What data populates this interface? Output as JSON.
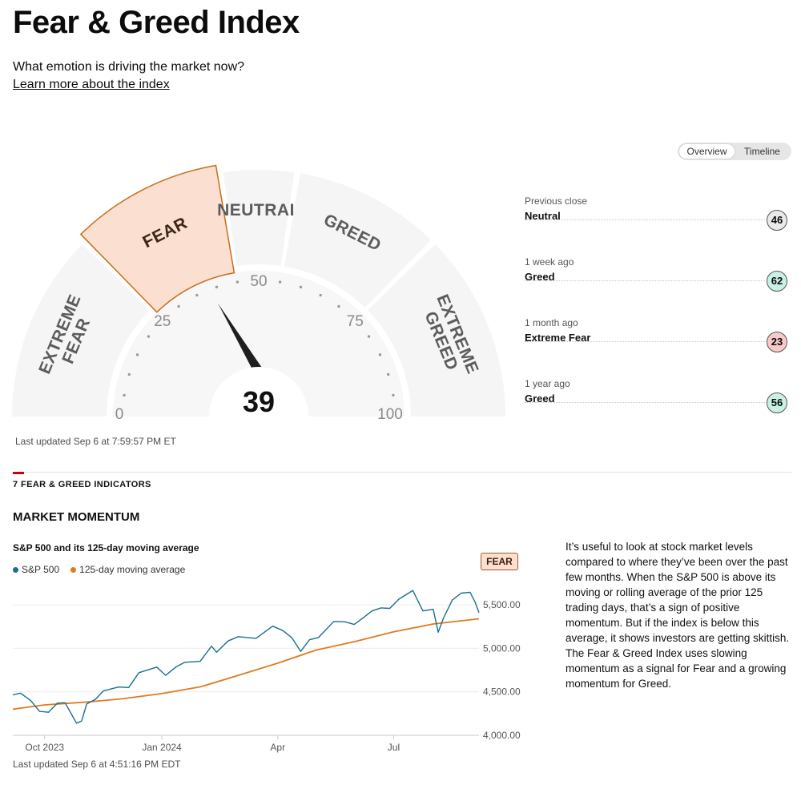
{
  "page": {
    "title": "Fear & Greed Index",
    "subtitle": "What emotion is driving the market now?",
    "learn_link": "Learn more about the index"
  },
  "view_toggle": {
    "options": [
      "Overview",
      "Timeline"
    ],
    "selected": "Overview"
  },
  "gauge": {
    "score": 39,
    "current_rating": "FEAR",
    "segments": [
      {
        "label": "EXTREME FEAR",
        "lines": [
          "EXTREME",
          "FEAR"
        ],
        "from": 0,
        "to": 25
      },
      {
        "label": "FEAR",
        "lines": [
          "FEAR"
        ],
        "from": 25,
        "to": 45
      },
      {
        "label": "NEUTRAL",
        "lines": [
          "NEUTRAL"
        ],
        "from": 45,
        "to": 55
      },
      {
        "label": "GREED",
        "lines": [
          "GREED"
        ],
        "from": 55,
        "to": 75
      },
      {
        "label": "EXTREME GREED",
        "lines": [
          "EXTREME",
          "GREED"
        ],
        "from": 75,
        "to": 100
      }
    ],
    "active_segment": "FEAR",
    "tick_labels": [
      "0",
      "25",
      "50",
      "75",
      "100"
    ],
    "colors": {
      "active_fill": "#fbdfd0",
      "active_stroke": "#c66f1b",
      "band": "#f5f5f5",
      "inner": "#f7f7f7",
      "needle": "#1f1f1f"
    }
  },
  "last_updated_gauge": "Last updated Sep 6 at 7:59:57 PM ET",
  "history": [
    {
      "label": "Previous close",
      "rating": "Neutral",
      "score": "46",
      "color": "#e9e9e9"
    },
    {
      "label": "1 week ago",
      "rating": "Greed",
      "score": "62",
      "color": "#c9f0e4"
    },
    {
      "label": "1 month ago",
      "rating": "Extreme Fear",
      "score": "23",
      "color": "#f7c9c9"
    },
    {
      "label": "1 year ago",
      "rating": "Greed",
      "score": "56",
      "color": "#c9f0e4"
    }
  ],
  "indicators_heading": "7 FEAR & GREED INDICATORS",
  "momentum": {
    "heading": "MARKET MOMENTUM",
    "chart_title": "S&P 500 and its 125-day moving average",
    "rating_badge": "FEAR",
    "description": "It’s useful to look at stock market levels compared to where they’ve been over the past few months. When the S&P 500 is above its moving or rolling average of the prior 125 trading days, that’s a sign of positive momentum. But if the index is below this average, it shows investors are getting skittish. The Fear & Greed Index uses slowing momentum as a signal for Fear and a growing momentum for Greed.",
    "last_updated": "Last updated Sep 6 at 4:51:16 PM EDT"
  },
  "chart_data": {
    "type": "line",
    "title": "S&P 500 and its 125-day moving average",
    "xlabel": "",
    "ylabel": "",
    "x_range": [
      "2023-09-06",
      "2024-09-06"
    ],
    "ylim": [
      4000,
      5750
    ],
    "y_ticks": [
      {
        "value": 5500,
        "label": "5,500.00"
      },
      {
        "value": 5000,
        "label": "5,000.00"
      },
      {
        "value": 4500,
        "label": "4,500.00"
      },
      {
        "value": 4000,
        "label": "4,000.00"
      }
    ],
    "x_ticks": [
      {
        "date": "2023-10-01",
        "label": "Oct 2023"
      },
      {
        "date": "2024-01-01",
        "label": "Jan 2024"
      },
      {
        "date": "2024-04-01",
        "label": "Apr"
      },
      {
        "date": "2024-07-01",
        "label": "Jul"
      }
    ],
    "grid": "horizontal",
    "series": [
      {
        "name": "S&P 500",
        "color": "#1a6f8e",
        "points": [
          [
            "2023-09-06",
            4465
          ],
          [
            "2023-09-12",
            4485
          ],
          [
            "2023-09-20",
            4400
          ],
          [
            "2023-09-27",
            4275
          ],
          [
            "2023-10-04",
            4265
          ],
          [
            "2023-10-11",
            4370
          ],
          [
            "2023-10-17",
            4375
          ],
          [
            "2023-10-26",
            4140
          ],
          [
            "2023-10-30",
            4165
          ],
          [
            "2023-11-03",
            4360
          ],
          [
            "2023-11-10",
            4415
          ],
          [
            "2023-11-16",
            4510
          ],
          [
            "2023-11-28",
            4555
          ],
          [
            "2023-12-06",
            4550
          ],
          [
            "2023-12-14",
            4720
          ],
          [
            "2023-12-28",
            4785
          ],
          [
            "2024-01-04",
            4690
          ],
          [
            "2024-01-12",
            4785
          ],
          [
            "2024-01-19",
            4840
          ],
          [
            "2024-01-31",
            4850
          ],
          [
            "2024-02-09",
            5025
          ],
          [
            "2024-02-13",
            4955
          ],
          [
            "2024-02-22",
            5085
          ],
          [
            "2024-03-01",
            5135
          ],
          [
            "2024-03-08",
            5125
          ],
          [
            "2024-03-15",
            5115
          ],
          [
            "2024-03-28",
            5255
          ],
          [
            "2024-04-05",
            5205
          ],
          [
            "2024-04-12",
            5125
          ],
          [
            "2024-04-19",
            4965
          ],
          [
            "2024-04-26",
            5100
          ],
          [
            "2024-05-03",
            5125
          ],
          [
            "2024-05-15",
            5310
          ],
          [
            "2024-05-24",
            5305
          ],
          [
            "2024-05-31",
            5275
          ],
          [
            "2024-06-07",
            5350
          ],
          [
            "2024-06-14",
            5430
          ],
          [
            "2024-06-21",
            5465
          ],
          [
            "2024-06-28",
            5460
          ],
          [
            "2024-07-05",
            5565
          ],
          [
            "2024-07-16",
            5665
          ],
          [
            "2024-07-24",
            5430
          ],
          [
            "2024-08-01",
            5450
          ],
          [
            "2024-08-05",
            5185
          ],
          [
            "2024-08-09",
            5345
          ],
          [
            "2024-08-16",
            5555
          ],
          [
            "2024-08-23",
            5635
          ],
          [
            "2024-08-30",
            5645
          ],
          [
            "2024-09-03",
            5530
          ],
          [
            "2024-09-06",
            5410
          ]
        ]
      },
      {
        "name": "125-day moving average",
        "color": "#e07b1f",
        "points": [
          [
            "2023-09-06",
            4300
          ],
          [
            "2023-10-01",
            4350
          ],
          [
            "2023-11-01",
            4380
          ],
          [
            "2023-12-01",
            4420
          ],
          [
            "2024-01-01",
            4480
          ],
          [
            "2024-02-01",
            4560
          ],
          [
            "2024-03-01",
            4690
          ],
          [
            "2024-04-01",
            4830
          ],
          [
            "2024-05-01",
            4980
          ],
          [
            "2024-06-01",
            5080
          ],
          [
            "2024-07-01",
            5190
          ],
          [
            "2024-08-01",
            5280
          ],
          [
            "2024-09-06",
            5340
          ]
        ]
      }
    ]
  }
}
